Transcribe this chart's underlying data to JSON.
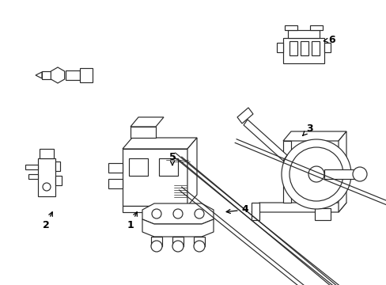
{
  "background_color": "#ffffff",
  "line_color": "#2a2a2a",
  "text_color": "#000000",
  "fig_width": 4.89,
  "fig_height": 3.6,
  "dpi": 100,
  "lw": 0.85
}
